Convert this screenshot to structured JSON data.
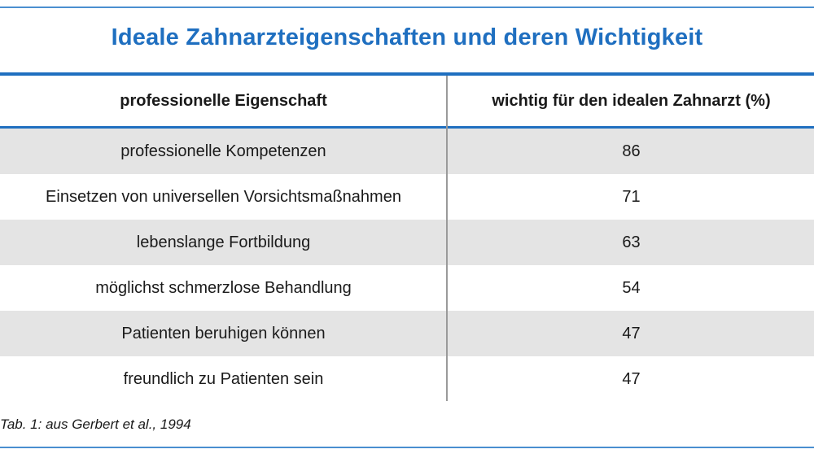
{
  "title": "Ideale Zahnarzteigenschaften und deren Wichtigkeit",
  "table": {
    "headers": [
      "professionelle Eigenschaft",
      "wichtig für den idealen Zahnarzt (%)"
    ],
    "rows": [
      [
        "professionelle Kompetenzen",
        "86"
      ],
      [
        "Einsetzen von universellen Vorsichtsmaßnahmen",
        "71"
      ],
      [
        "lebenslange Fortbildung",
        "63"
      ],
      [
        "möglichst schmerzlose Behandlung",
        "54"
      ],
      [
        "Patienten beruhigen können",
        "47"
      ],
      [
        "freundlich zu Patienten sein",
        "47"
      ]
    ]
  },
  "caption": "Tab. 1: aus Gerbert et al., 1994",
  "colors": {
    "accent": "#1f6fc0",
    "row_shade": "#e4e4e4"
  }
}
